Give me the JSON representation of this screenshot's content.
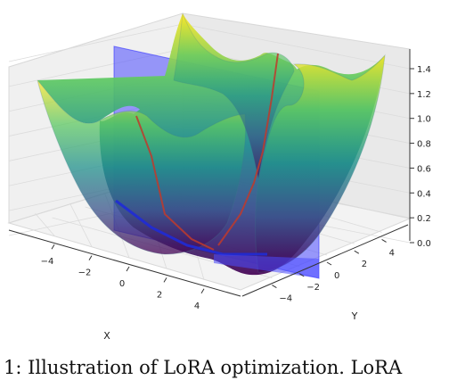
{
  "caption": "1: Illustration of LoRA optimization. LoRA",
  "chart_data": {
    "type": "surface3d",
    "xlabel": "X",
    "ylabel": "Y",
    "zlabel": "",
    "x_ticks": [
      "−4",
      "−2",
      "0",
      "2",
      "4"
    ],
    "y_ticks": [
      "−4",
      "−2",
      "0",
      "2",
      "4"
    ],
    "z_ticks": [
      "0.0",
      "0.2",
      "0.4",
      "0.6",
      "0.8",
      "1.0",
      "1.2",
      "1.4"
    ],
    "xlim": [
      -5,
      5
    ],
    "ylim": [
      -5,
      5
    ],
    "zlim": [
      0,
      1.5
    ],
    "colormap": "viridis",
    "plane_color": "#5050ff",
    "path_color": "#d62728",
    "grid": true
  }
}
